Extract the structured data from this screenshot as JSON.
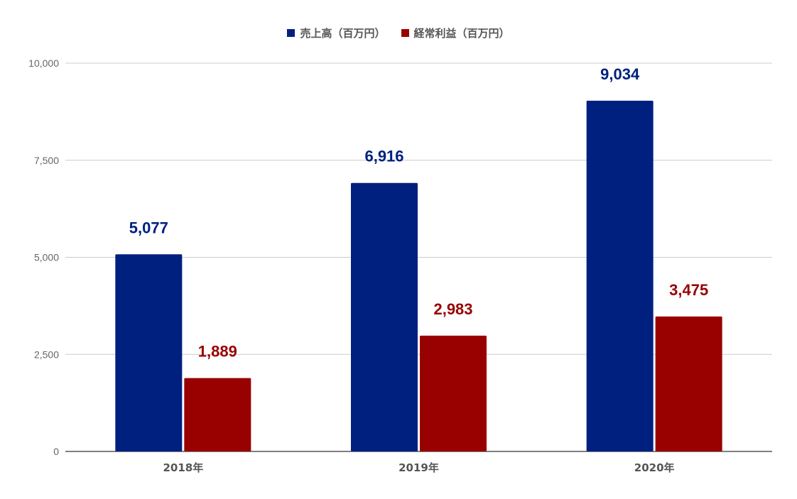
{
  "chart_data": {
    "type": "bar",
    "title": "",
    "xlabel": "",
    "ylabel": "",
    "categories": [
      "2018年",
      "2019年",
      "2020年"
    ],
    "series": [
      {
        "name": "売上高（百万円）",
        "color": "#002080",
        "values": [
          5077,
          6916,
          9034
        ],
        "labels": [
          "5,077",
          "6,916",
          "9,034"
        ]
      },
      {
        "name": "経常利益（百万円）",
        "color": "#990000",
        "values": [
          1889,
          2983,
          3475
        ],
        "labels": [
          "1,889",
          "2,983",
          "3,475"
        ]
      }
    ],
    "ylim": [
      0,
      10000
    ],
    "yticks": [
      0,
      2500,
      5000,
      7500,
      10000
    ],
    "ytick_labels": [
      "0",
      "2,500",
      "5,000",
      "7,500",
      "10,000"
    ],
    "grid": true,
    "legend_position": "top-center"
  }
}
